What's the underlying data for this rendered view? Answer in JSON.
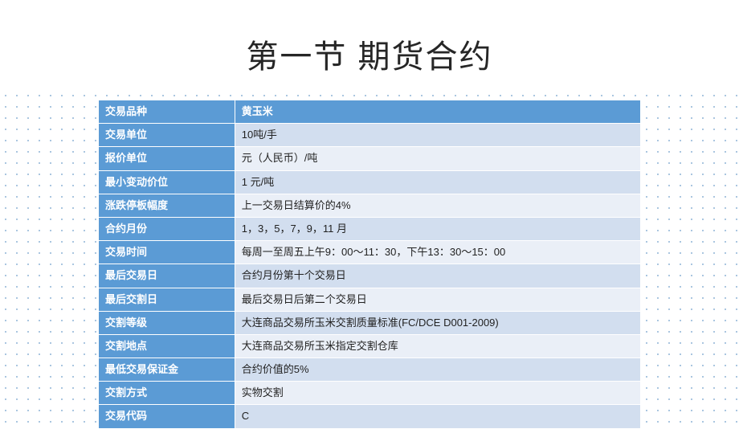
{
  "title": "第一节   期货合约",
  "table": {
    "label_bg": "#5b9bd5",
    "label_color": "#ffffff",
    "band_a": "#d2deef",
    "band_b": "#eaeff7",
    "rows": [
      {
        "label": "交易品种",
        "value": "黄玉米",
        "type": "header"
      },
      {
        "label": "交易单位",
        "value": "10吨/手",
        "type": "a"
      },
      {
        "label": "报价单位",
        "value": "元（人民币）/吨",
        "type": "b"
      },
      {
        "label": "最小变动价位",
        "value": "1 元/吨",
        "type": "a"
      },
      {
        "label": "涨跌停板幅度",
        "value": "上一交易日结算价的4%",
        "type": "b"
      },
      {
        "label": "合约月份",
        "value": "1，3，5，7，9，11 月",
        "type": "a"
      },
      {
        "label": "交易时间",
        "value": "每周一至周五上午9：00～11：30，下午13：30～15：00",
        "type": "b"
      },
      {
        "label": "最后交易日",
        "value": "合约月份第十个交易日",
        "type": "a"
      },
      {
        "label": "最后交割日",
        "value": "最后交易日后第二个交易日",
        "type": "b"
      },
      {
        "label": "交割等级",
        "value": "大连商品交易所玉米交割质量标准(FC/DCE D001-2009)",
        "type": "a"
      },
      {
        "label": "交割地点",
        "value": "大连商品交易所玉米指定交割仓库",
        "type": "b"
      },
      {
        "label": "最低交易保证金",
        "value": "合约价值的5%",
        "type": "a"
      },
      {
        "label": "交割方式",
        "value": "实物交割",
        "type": "b"
      },
      {
        "label": "交易代码",
        "value": "C",
        "type": "a"
      }
    ]
  }
}
